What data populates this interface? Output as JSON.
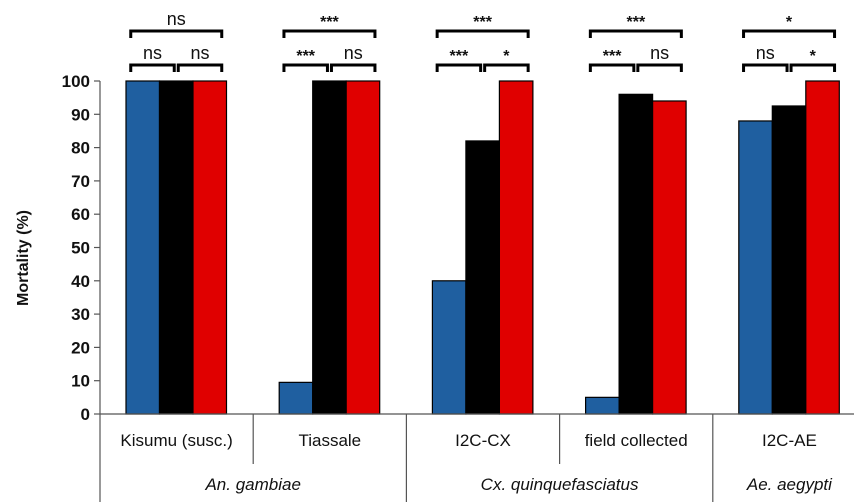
{
  "chart_data": {
    "type": "bar",
    "ylabel": "Mortality (%)",
    "ylim": [
      0,
      100
    ],
    "yticks": [
      "0",
      "10",
      "20",
      "30",
      "40",
      "50",
      "60",
      "70",
      "80",
      "90",
      "100"
    ],
    "categories": [
      "Kisumu (susc.)",
      "Tiassale",
      "I2C-CX",
      "field collected",
      "I2C-AE"
    ],
    "groups": [
      {
        "label": "An. gambiae",
        "span": [
          0,
          1
        ]
      },
      {
        "label": "Cx. quinquefasciatus",
        "span": [
          2,
          3
        ]
      },
      {
        "label": "Ae. aegypti",
        "span": [
          4,
          4
        ]
      }
    ],
    "series": [
      {
        "color": "#1f5fa0",
        "values": [
          100,
          9.5,
          40,
          5,
          88
        ]
      },
      {
        "color": "#000000",
        "values": [
          100,
          100,
          82,
          96,
          92.5
        ]
      },
      {
        "color": "#e00000",
        "values": [
          100,
          100,
          100,
          94,
          100
        ]
      }
    ],
    "significance": [
      {
        "top": "ns",
        "left": "ns",
        "right": "ns"
      },
      {
        "top": "***",
        "left": "***",
        "right": "ns"
      },
      {
        "top": "***",
        "left": "***",
        "right": "*"
      },
      {
        "top": "***",
        "left": "***",
        "right": "ns"
      },
      {
        "top": "*",
        "left": "ns",
        "right": "*"
      }
    ],
    "grid": false,
    "legend": "none"
  }
}
